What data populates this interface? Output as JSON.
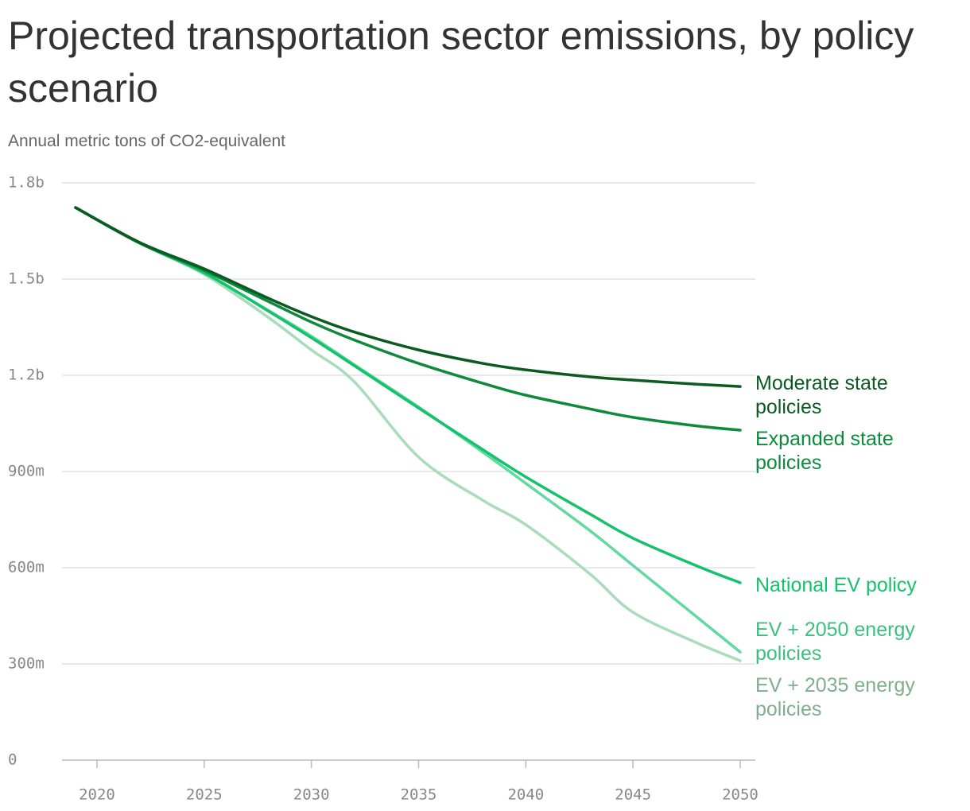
{
  "chart_data": {
    "type": "line",
    "title": "Projected transportation sector emissions, by policy scenario",
    "subtitle": "Annual metric tons of CO2-equivalent",
    "x": [
      2019,
      2022,
      2025,
      2028,
      2030,
      2032,
      2035,
      2038,
      2040,
      2043,
      2045,
      2048,
      2050
    ],
    "xlim": [
      2019,
      2050
    ],
    "xticks": [
      2020,
      2025,
      2030,
      2035,
      2040,
      2045,
      2050
    ],
    "ylim": [
      0,
      1800000000
    ],
    "yticks": [
      {
        "value": 0,
        "label": "0"
      },
      {
        "value": 300000000,
        "label": "300m"
      },
      {
        "value": 600000000,
        "label": "600m"
      },
      {
        "value": 900000000,
        "label": "900m"
      },
      {
        "value": 1200000000,
        "label": "1.2b"
      },
      {
        "value": 1500000000,
        "label": "1.5b"
      },
      {
        "value": 1800000000,
        "label": "1.8b"
      }
    ],
    "grid": true,
    "series": [
      {
        "name": "Moderate state policies",
        "color": "#0a5a22",
        "label_color": "#0a5a22",
        "values": [
          1723000000,
          1614000000,
          1532000000,
          1440000000,
          1383000000,
          1335000000,
          1279000000,
          1237000000,
          1217000000,
          1195000000,
          1185000000,
          1172000000,
          1165000000
        ]
      },
      {
        "name": "Expanded state policies",
        "color": "#0e8a3c",
        "label_color": "#0e8a3c",
        "values": [
          1723000000,
          1612000000,
          1527000000,
          1430000000,
          1366000000,
          1310000000,
          1237000000,
          1175000000,
          1138000000,
          1095000000,
          1069000000,
          1042000000,
          1029000000
        ]
      },
      {
        "name": "National EV policy",
        "color": "#14c26c",
        "label_color": "#14c26c",
        "values": [
          1723000000,
          1612000000,
          1520000000,
          1400000000,
          1317000000,
          1230000000,
          1098000000,
          968000000,
          883000000,
          767000000,
          692000000,
          605000000,
          553000000
        ]
      },
      {
        "name": "EV + 2050 energy policies",
        "color": "#62d9a0",
        "label_color": "#3cbf7e",
        "values": [
          1723000000,
          1612000000,
          1518000000,
          1402000000,
          1322000000,
          1233000000,
          1101000000,
          960000000,
          863000000,
          715000000,
          607000000,
          445000000,
          337000000
        ]
      },
      {
        "name": "EV + 2035 energy policies",
        "color": "#a9dcbb",
        "label_color": "#7fae8e",
        "values": [
          1723000000,
          1612000000,
          1515000000,
          1380000000,
          1279000000,
          1180000000,
          945000000,
          810000000,
          734000000,
          580000000,
          461000000,
          365000000,
          310000000
        ]
      }
    ]
  }
}
